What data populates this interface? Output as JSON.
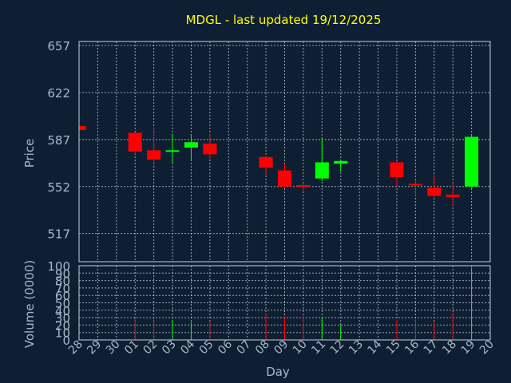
{
  "chart_data": [
    {
      "type": "candlestick",
      "title": "MDGL - last updated 19/12/2025",
      "ylabel": "Price",
      "ylim": [
        496,
        660
      ],
      "yticks": [
        517,
        552,
        587,
        622,
        657
      ],
      "grid": true,
      "days": [
        "28",
        "29",
        "30",
        "01",
        "02",
        "03",
        "04",
        "05",
        "06",
        "07",
        "08",
        "09",
        "10",
        "11",
        "12",
        "13",
        "14",
        "15",
        "16",
        "17",
        "18",
        "19",
        "20"
      ],
      "candles": [
        {
          "day": "28",
          "open": 597,
          "close": 594,
          "high": 597,
          "low": 594,
          "color": "red"
        },
        {
          "day": "01",
          "open": 592,
          "close": 578,
          "high": 592,
          "low": 576,
          "color": "red"
        },
        {
          "day": "02",
          "open": 579,
          "close": 572,
          "high": 596,
          "low": 568,
          "color": "red"
        },
        {
          "day": "03",
          "open": 578,
          "close": 579,
          "high": 591,
          "low": 569,
          "color": "green"
        },
        {
          "day": "04",
          "open": 581,
          "close": 585,
          "high": 591,
          "low": 572,
          "color": "green"
        },
        {
          "day": "05",
          "open": 584,
          "close": 576,
          "high": 591,
          "low": 572,
          "color": "red"
        },
        {
          "day": "08",
          "open": 574,
          "close": 566,
          "high": 574,
          "low": 560,
          "color": "red"
        },
        {
          "day": "09",
          "open": 564,
          "close": 552,
          "high": 569,
          "low": 551,
          "color": "red"
        },
        {
          "day": "10",
          "open": 553,
          "close": 552,
          "high": 554,
          "low": 548,
          "color": "red"
        },
        {
          "day": "11",
          "open": 558,
          "close": 570,
          "high": 588,
          "low": 556,
          "color": "green"
        },
        {
          "day": "12",
          "open": 569,
          "close": 571,
          "high": 572,
          "low": 563,
          "color": "green"
        },
        {
          "day": "15",
          "open": 570,
          "close": 559,
          "high": 571,
          "low": 552,
          "color": "red"
        },
        {
          "day": "16",
          "open": 554,
          "close": 553,
          "high": 557,
          "low": 545,
          "color": "red"
        },
        {
          "day": "17",
          "open": 551,
          "close": 545,
          "high": 560,
          "low": 544,
          "color": "red"
        },
        {
          "day": "18",
          "open": 546,
          "close": 544,
          "high": 554,
          "low": 538,
          "color": "red"
        },
        {
          "day": "19",
          "open": 552,
          "close": 589,
          "high": 591,
          "low": 551,
          "color": "green"
        }
      ]
    },
    {
      "type": "bar",
      "ylabel": "Volume (0000)",
      "xlabel": "Day",
      "ylim": [
        0,
        100
      ],
      "yticks": [
        0,
        10,
        20,
        30,
        40,
        50,
        60,
        70,
        80,
        90,
        100
      ],
      "grid": true,
      "bars": [
        {
          "day": "01",
          "value": 30,
          "color": "red"
        },
        {
          "day": "02",
          "value": 30,
          "color": "red"
        },
        {
          "day": "03",
          "value": 27,
          "color": "green"
        },
        {
          "day": "04",
          "value": 24,
          "color": "green"
        },
        {
          "day": "05",
          "value": 25,
          "color": "red"
        },
        {
          "day": "08",
          "value": 35,
          "color": "red"
        },
        {
          "day": "09",
          "value": 30,
          "color": "red"
        },
        {
          "day": "10",
          "value": 32,
          "color": "red"
        },
        {
          "day": "11",
          "value": 30,
          "color": "green"
        },
        {
          "day": "12",
          "value": 20,
          "color": "green"
        },
        {
          "day": "15",
          "value": 27,
          "color": "red"
        },
        {
          "day": "16",
          "value": 28,
          "color": "red"
        },
        {
          "day": "17",
          "value": 25,
          "color": "red"
        },
        {
          "day": "18",
          "value": 37,
          "color": "red"
        },
        {
          "day": "19",
          "value": 97,
          "color": "green"
        }
      ]
    }
  ],
  "colors": {
    "background": "#0f1f33",
    "up": "#00ff00",
    "down": "#ff0000",
    "title": "#ffff00",
    "text": "#a9b8c8",
    "grid": "#c8d0da"
  }
}
